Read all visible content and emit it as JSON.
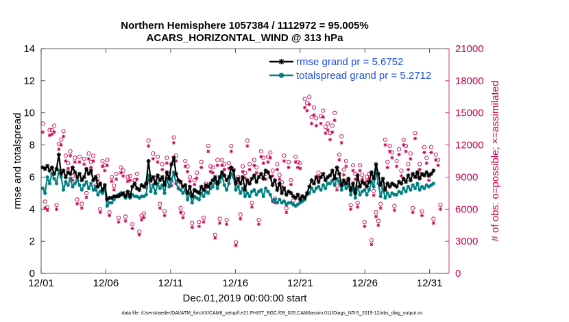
{
  "chart_data": {
    "type": "line",
    "title_line1": "Northern Hemisphere 1057384 / 1112972 = 95.005%",
    "title_line2": "ACARS_HORIZONTAL_WIND @ 313 hPa",
    "xlabel": "Dec.01,2019 00:00:00 start",
    "ylabel_left": "rmse and totalspread",
    "ylabel_right": "# of obs: o=possible; ×=assimilated",
    "footnote": "data file: /Users/raeder/DAI/ATM_forcXX/CAM6_setup/f.e21.FHIST_BGC.f09_025.CAM6assim.011/Diags_NTrS_2019-12/obs_diag_output.nc",
    "x_range_days": [
      0,
      31.5
    ],
    "x_ticks": [
      {
        "day": 0,
        "label": "12/01"
      },
      {
        "day": 5,
        "label": "12/06"
      },
      {
        "day": 10,
        "label": "12/11"
      },
      {
        "day": 15,
        "label": "12/16"
      },
      {
        "day": 20,
        "label": "12/21"
      },
      {
        "day": 25,
        "label": "12/26"
      },
      {
        "day": 30,
        "label": "12/31"
      }
    ],
    "ylim_left": [
      0,
      14
    ],
    "y_ticks_left": [
      "0",
      "2",
      "4",
      "6",
      "8",
      "10",
      "12",
      "14"
    ],
    "ylim_right": [
      0,
      21000
    ],
    "y_ticks_right": [
      "0",
      "3000",
      "6000",
      "9000",
      "12000",
      "15000",
      "18000",
      "21000"
    ],
    "legend_position": "top-right",
    "colors": {
      "rmse": "#000000",
      "spread": "#008080",
      "obs": "#c8004f",
      "legend_text": "#1f4fe0"
    },
    "series": [
      {
        "name": "rmse grand pr = 5.6752",
        "key": "rmse",
        "values": [
          6.6,
          6.5,
          6.7,
          6.4,
          6.6,
          6.2,
          6.5,
          7.4,
          6.2,
          6.4,
          6.0,
          6.3,
          6.2,
          6.6,
          6.3,
          6.0,
          6.2,
          5.8,
          6.0,
          6.5,
          6.2,
          6.4,
          5.8,
          6.0,
          5.4,
          5.6,
          5.2,
          5.5,
          4.6,
          4.7,
          4.7,
          4.8,
          4.8,
          4.8,
          4.9,
          5.0,
          4.8,
          5.1,
          4.8,
          5.4,
          5.6,
          5.3,
          5.2,
          5.5,
          5.4,
          5.6,
          7.0,
          5.8,
          6.0,
          5.6,
          6.1,
          5.8,
          6.0,
          5.5,
          6.3,
          5.9,
          6.8,
          7.2,
          6.2,
          5.8,
          5.7,
          5.4,
          5.5,
          5.0,
          5.4,
          4.8,
          5.2,
          5.1,
          5.0,
          5.4,
          5.2,
          5.5,
          5.4,
          5.6,
          5.8,
          6.0,
          5.6,
          6.0,
          6.3,
          6.1,
          5.8,
          6.0,
          6.6,
          6.4,
          5.6,
          5.9,
          5.6,
          6.0,
          5.2,
          5.8,
          5.6,
          5.9,
          6.1,
          5.7,
          6.0,
          6.2,
          5.9,
          6.4,
          6.3,
          6.0,
          5.5,
          5.8,
          5.2,
          5.6,
          5.0,
          5.3,
          4.9,
          5.1,
          5.0,
          4.8,
          4.7,
          4.9,
          4.6,
          4.8,
          4.7,
          5.0,
          5.4,
          5.8,
          5.6,
          6.0,
          5.7,
          6.0,
          6.2,
          5.8,
          6.0,
          6.1,
          6.4,
          5.9,
          6.6,
          6.2,
          5.5,
          5.8,
          5.6,
          5.9,
          5.2,
          5.6,
          5.0,
          6.1,
          5.4,
          5.7,
          5.6,
          5.4,
          5.7,
          6.3,
          5.9,
          6.8,
          6.2,
          5.5,
          5.9,
          5.2,
          5.6,
          5.4,
          5.6,
          5.5,
          5.4,
          5.7,
          5.6,
          5.9,
          5.7,
          6.1,
          5.8,
          6.2,
          6.0,
          6.3,
          5.9,
          6.2,
          6.1,
          6.3,
          6.1,
          6.2,
          6.4
        ],
        "style": "line with asterisk markers"
      },
      {
        "name": "totalspread grand pr = 5.2712",
        "key": "spread",
        "values": [
          5.3,
          5.0,
          6.0,
          5.6,
          6.2,
          5.9,
          5.6,
          6.4,
          6.0,
          5.2,
          5.7,
          5.5,
          5.9,
          5.4,
          5.6,
          5.8,
          5.5,
          5.2,
          5.5,
          5.7,
          5.3,
          5.6,
          5.2,
          5.4,
          4.9,
          5.1,
          5.0,
          5.3,
          4.2,
          4.4,
          4.4,
          4.6,
          4.8,
          4.9,
          5.0,
          4.9,
          4.7,
          4.9,
          4.7,
          4.9,
          4.8,
          4.8,
          4.7,
          4.8,
          4.8,
          4.9,
          6.1,
          5.1,
          5.5,
          5.0,
          5.6,
          5.3,
          5.5,
          5.0,
          5.9,
          5.4,
          5.8,
          6.3,
          5.6,
          5.3,
          5.2,
          5.0,
          5.2,
          4.6,
          5.0,
          4.4,
          4.8,
          4.7,
          4.6,
          5.0,
          4.8,
          5.1,
          5.0,
          5.3,
          5.4,
          5.8,
          5.3,
          5.7,
          6.1,
          5.5,
          5.2,
          5.6,
          6.2,
          6.0,
          5.2,
          5.4,
          5.0,
          5.3,
          4.8,
          5.0,
          4.8,
          5.1,
          5.2,
          4.9,
          5.1,
          5.2,
          4.8,
          5.3,
          5.1,
          4.9,
          4.5,
          4.6,
          4.4,
          4.6,
          4.4,
          4.5,
          4.3,
          4.4,
          4.4,
          4.3,
          4.2,
          4.3,
          4.4,
          4.5,
          4.6,
          4.9,
          5.0,
          5.3,
          5.1,
          5.3,
          5.4,
          5.2,
          5.5,
          5.3,
          5.6,
          5.6,
          5.8,
          5.5,
          5.9,
          5.7,
          5.2,
          5.6,
          5.3,
          5.5,
          4.9,
          5.3,
          4.7,
          5.4,
          4.9,
          5.1,
          5.2,
          4.9,
          5.2,
          5.7,
          5.4,
          6.4,
          5.6,
          4.8,
          5.3,
          4.7,
          5.0,
          4.8,
          5.0,
          4.9,
          4.9,
          5.1,
          5.0,
          5.3,
          5.1,
          5.4,
          5.2,
          5.5,
          5.3,
          5.6,
          5.2,
          5.4,
          5.3,
          5.5,
          5.4,
          5.5,
          5.6
        ],
        "style": "line with filled circle markers"
      },
      {
        "name": "obs possible",
        "key": "possible",
        "axis": "right",
        "values": [
          14000,
          6700,
          6200,
          13400,
          13400,
          13800,
          6400,
          12100,
          12500,
          13300,
          11000,
          10300,
          11400,
          9100,
          10800,
          6900,
          10900,
          6500,
          10700,
          7500,
          11200,
          10400,
          11000,
          8200,
          9100,
          6000,
          10500,
          10100,
          10600,
          5700,
          9000,
          8200,
          9300,
          5200,
          9900,
          9600,
          5300,
          9000,
          9100,
          4600,
          8700,
          9300,
          3900,
          5400,
          5600,
          8400,
          12400,
          9000,
          11200,
          8900,
          10900,
          6500,
          10200,
          5800,
          10800,
          9300,
          8600,
          12700,
          11000,
          8300,
          6100,
          5600,
          10500,
          10000,
          9000,
          4700,
          8700,
          9400,
          4800,
          10400,
          5200,
          8400,
          11900,
          10000,
          9900,
          3600,
          10600,
          5100,
          10600,
          10200,
          5000,
          10300,
          11900,
          9700,
          2900,
          9000,
          5500,
          10000,
          9400,
          12400,
          10200,
          6600,
          10600,
          9900,
          5000,
          11400,
          10800,
          9300,
          10900,
          11300,
          9600,
          7000,
          10200,
          9200,
          8500,
          11000,
          6100,
          10400,
          8700,
          6800,
          10900,
          10400,
          10300,
          7200,
          16300,
          15900,
          16500,
          14600,
          15500,
          14500,
          9400,
          14700,
          15200,
          13700,
          14000,
          13100,
          13800,
          15000,
          8200,
          11100,
          12800,
          9700,
          10500,
          8700,
          6400,
          10100,
          9300,
          6600,
          10100,
          9200,
          4800,
          9000,
          9300,
          3100,
          7700,
          5700,
          4900,
          6500,
          8400,
          12500,
          10400,
          11900,
          11300,
          6300,
          10500,
          11600,
          9600,
          12500,
          11900,
          10200,
          11200,
          6100,
          13100,
          9400,
          10200,
          5800,
          11800,
          10800,
          9100,
          11800,
          5100,
          11100,
          10600,
          6400
        ],
        "style": "open circle markers"
      },
      {
        "name": "obs assimilated",
        "key": "assimilated",
        "axis": "right",
        "values": [
          13200,
          6100,
          5900,
          12900,
          13000,
          13200,
          6000,
          11600,
          12000,
          12800,
          10500,
          9800,
          11000,
          8700,
          10400,
          6500,
          10400,
          6100,
          10200,
          7100,
          10700,
          9900,
          10500,
          7800,
          8700,
          5700,
          10000,
          9600,
          10100,
          5400,
          8600,
          7800,
          8800,
          4800,
          9400,
          9100,
          4900,
          8600,
          8700,
          4200,
          8300,
          8800,
          3600,
          5000,
          5200,
          8000,
          11900,
          8600,
          10700,
          8500,
          10400,
          6100,
          9700,
          5400,
          10300,
          8800,
          8200,
          12200,
          10500,
          7900,
          5700,
          5200,
          10000,
          9500,
          8600,
          4300,
          8300,
          8900,
          4400,
          9900,
          4800,
          8000,
          11400,
          9500,
          9400,
          3300,
          10100,
          4700,
          10100,
          9700,
          4600,
          9800,
          11400,
          9200,
          2600,
          8600,
          5100,
          9500,
          8900,
          11900,
          9700,
          6200,
          10100,
          9400,
          4600,
          10900,
          10300,
          8800,
          10400,
          10800,
          9100,
          6600,
          9700,
          8800,
          8100,
          10500,
          5700,
          9900,
          8300,
          6400,
          10400,
          9900,
          9800,
          6800,
          15500,
          15200,
          15800,
          14000,
          14800,
          13800,
          9000,
          14000,
          14600,
          13100,
          13400,
          12500,
          13200,
          14300,
          7800,
          10600,
          12200,
          9200,
          10000,
          8300,
          6000,
          9600,
          8800,
          6200,
          9600,
          8800,
          4400,
          8600,
          8800,
          2700,
          7300,
          5300,
          4500,
          6100,
          8000,
          12000,
          9900,
          11400,
          10800,
          5900,
          10000,
          11100,
          9100,
          12000,
          11400,
          9700,
          10700,
          5700,
          12600,
          9000,
          9700,
          5400,
          11300,
          10300,
          8700,
          11300,
          4700,
          10600,
          10100,
          6000
        ],
        "style": "asterisk markers"
      }
    ]
  }
}
